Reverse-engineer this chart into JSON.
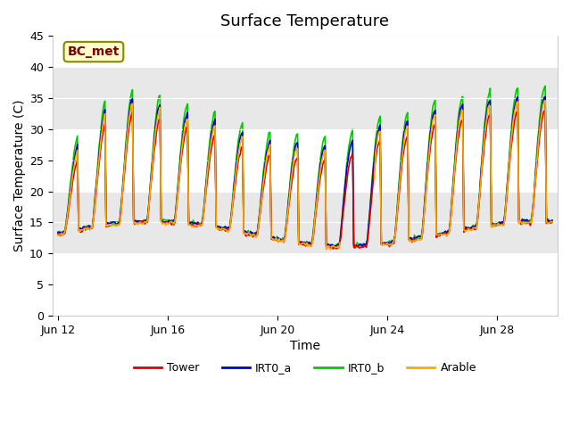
{
  "title": "Surface Temperature",
  "xlabel": "Time",
  "ylabel": "Surface Temperature (C)",
  "annotation": "BC_met",
  "ylim": [
    0,
    45
  ],
  "x_ticks_days": [
    0,
    4,
    8,
    12,
    16
  ],
  "x_tick_labels": [
    "Jun 12",
    "Jun 16",
    "Jun 20",
    "Jun 24",
    "Jun 28"
  ],
  "y_ticks": [
    0,
    5,
    10,
    15,
    20,
    25,
    30,
    35,
    40,
    45
  ],
  "colors": {
    "Tower": "#dd0000",
    "IRT0_a": "#0000cc",
    "IRT0_b": "#00cc00",
    "Arable": "#ffaa00"
  },
  "plot_bg_color": "#ffffff",
  "title_fontsize": 13,
  "label_fontsize": 10,
  "tick_fontsize": 9,
  "band_ranges": [
    [
      10,
      20
    ],
    [
      30,
      40
    ]
  ],
  "band_color": "#e8e8e8",
  "annotation_bg": "#ffffcc",
  "annotation_fg": "#800000",
  "annotation_border": "#888800"
}
